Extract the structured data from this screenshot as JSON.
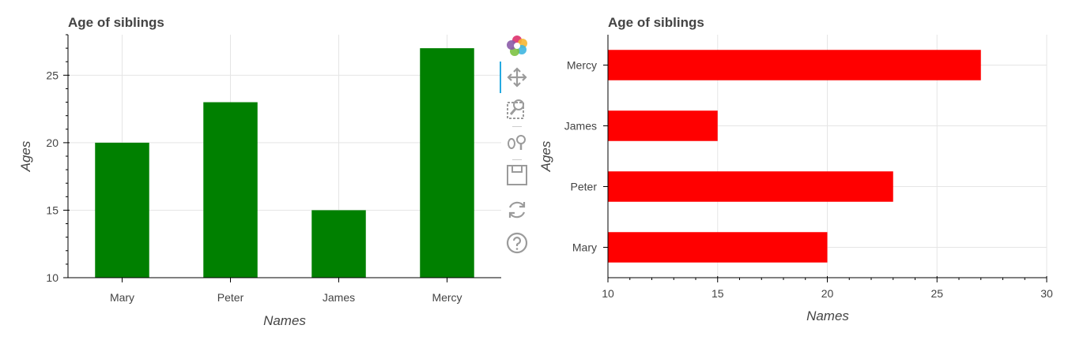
{
  "colors": {
    "left_bars": "#008000",
    "right_bars": "#ff0000",
    "grid": "#e5e5e5",
    "axis": "#000000",
    "tool_icon": "#9b9b9b"
  },
  "toolbar": {
    "icons": [
      "bokeh-logo-icon",
      "pan-icon",
      "box-zoom-icon",
      "wheel-zoom-icon",
      "save-icon",
      "reset-icon",
      "help-icon"
    ]
  },
  "chart_data": [
    {
      "type": "bar",
      "orientation": "vertical",
      "title": "Age of siblings",
      "xlabel": "Names",
      "ylabel": "Ages",
      "categories": [
        "Mary",
        "Peter",
        "James",
        "Mercy"
      ],
      "values": [
        20,
        23,
        15,
        27
      ],
      "ylim": [
        10,
        28
      ],
      "yticks": [
        10,
        15,
        20,
        25
      ],
      "grid": true,
      "color": "#008000"
    },
    {
      "type": "bar",
      "orientation": "horizontal",
      "title": "Age of siblings",
      "xlabel": "Names",
      "ylabel": "Ages",
      "categories": [
        "Mary",
        "Peter",
        "James",
        "Mercy"
      ],
      "values": [
        20,
        23,
        15,
        27
      ],
      "xlim": [
        10,
        30
      ],
      "xticks": [
        10,
        15,
        20,
        25,
        30
      ],
      "grid": true,
      "color": "#ff0000"
    }
  ]
}
